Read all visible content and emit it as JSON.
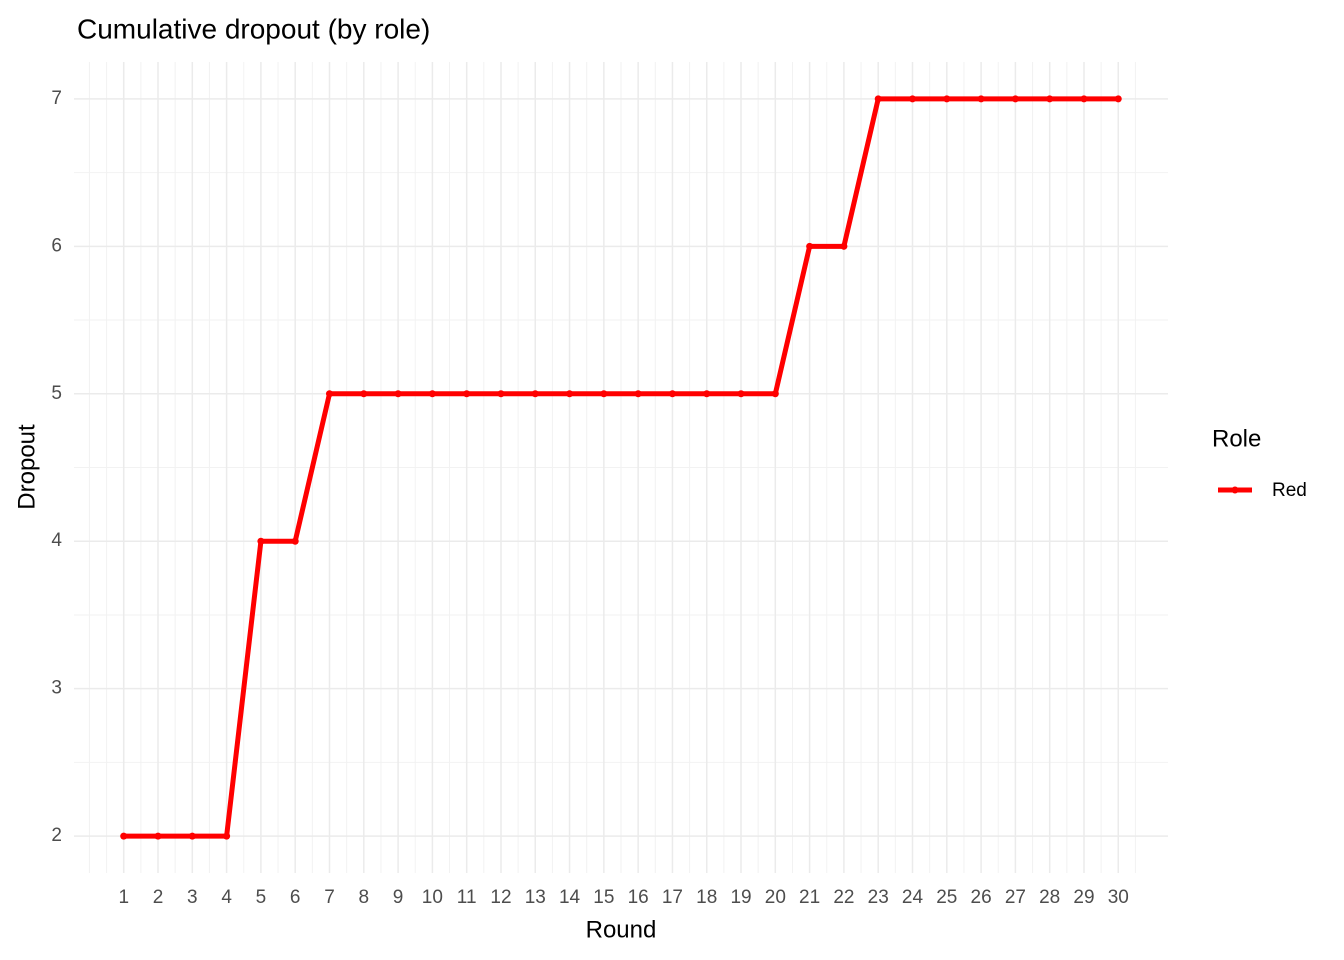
{
  "chart_data": {
    "type": "line",
    "title": "Cumulative dropout (by role)",
    "x_label": "Round",
    "y_label": "Dropout",
    "x": [
      1,
      2,
      3,
      4,
      5,
      6,
      7,
      8,
      9,
      10,
      11,
      12,
      13,
      14,
      15,
      16,
      17,
      18,
      19,
      20,
      21,
      22,
      23,
      24,
      25,
      26,
      27,
      28,
      29,
      30
    ],
    "series": [
      {
        "name": "Red",
        "color": "#ff0000",
        "values": [
          2,
          2,
          2,
          2,
          4,
          4,
          5,
          5,
          5,
          5,
          5,
          5,
          5,
          5,
          5,
          5,
          5,
          5,
          5,
          5,
          6,
          6,
          7,
          7,
          7,
          7,
          7,
          7,
          7,
          7
        ]
      }
    ],
    "xlim": [
      -0.45,
      31.45
    ],
    "xticks": [
      1,
      2,
      3,
      4,
      5,
      6,
      7,
      8,
      9,
      10,
      11,
      12,
      13,
      14,
      15,
      16,
      17,
      18,
      19,
      20,
      21,
      22,
      23,
      24,
      25,
      26,
      27,
      28,
      29,
      30
    ],
    "ylim": [
      1.75,
      7.25
    ],
    "yticks": [
      2,
      3,
      4,
      5,
      6,
      7
    ],
    "grid": true,
    "legend_title": "Role",
    "legend_position": "right"
  }
}
